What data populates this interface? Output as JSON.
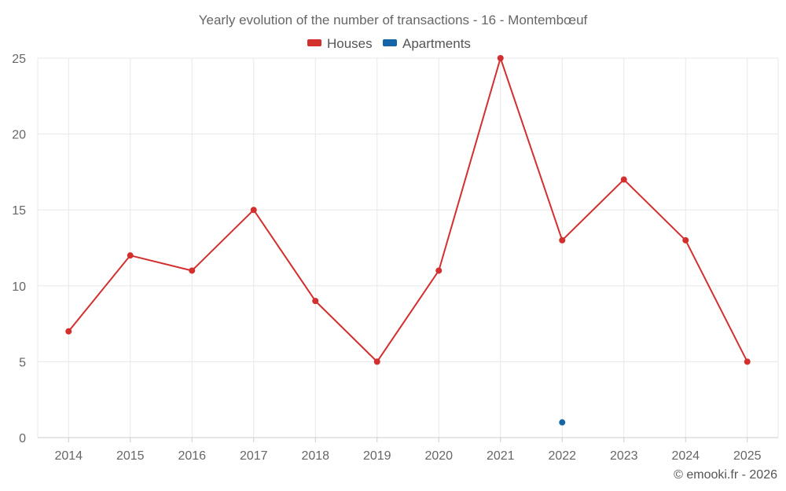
{
  "chart_data": {
    "type": "line",
    "title": "Yearly evolution of the number of transactions - 16 - Montembœuf",
    "categories": [
      "2014",
      "2015",
      "2016",
      "2017",
      "2018",
      "2019",
      "2020",
      "2021",
      "2022",
      "2023",
      "2024",
      "2025"
    ],
    "series": [
      {
        "name": "Houses",
        "color": "#d32f2f",
        "values": [
          7,
          12,
          11,
          15,
          9,
          5,
          11,
          25,
          13,
          17,
          13,
          5
        ]
      },
      {
        "name": "Apartments",
        "color": "#1565a8",
        "values": [
          null,
          null,
          null,
          null,
          null,
          null,
          null,
          null,
          1,
          null,
          null,
          null
        ]
      }
    ],
    "ylim": [
      0,
      25
    ],
    "yticks": [
      0,
      5,
      10,
      15,
      20,
      25
    ],
    "xlabel": "",
    "ylabel": "",
    "grid": true,
    "legend_position": "top-center"
  },
  "credit": "© emooki.fr - 2026"
}
